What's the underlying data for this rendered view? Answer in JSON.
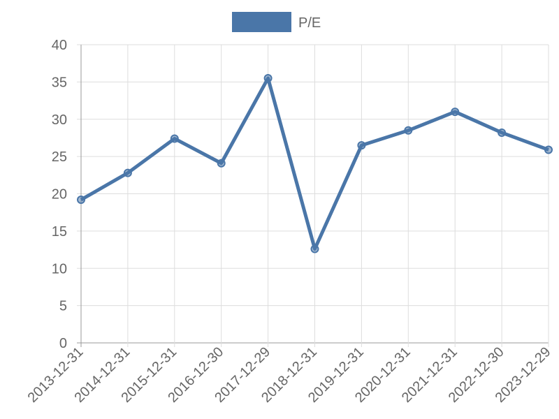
{
  "chart_data": {
    "type": "line",
    "categories": [
      "2013-12-31",
      "2014-12-31",
      "2015-12-31",
      "2016-12-30",
      "2017-12-29",
      "2018-12-31",
      "2019-12-31",
      "2020-12-31",
      "2021-12-31",
      "2022-12-30",
      "2023-12-29"
    ],
    "series": [
      {
        "name": "P/E",
        "color": "#4a76a8",
        "values": [
          19.2,
          22.8,
          27.4,
          24.1,
          35.5,
          12.6,
          26.5,
          28.5,
          31.0,
          28.2,
          25.9
        ]
      }
    ],
    "ylim": [
      0,
      40
    ],
    "yticks": [
      0,
      5,
      10,
      15,
      20,
      25,
      30,
      35,
      40
    ],
    "grid": true,
    "legend": "top"
  }
}
